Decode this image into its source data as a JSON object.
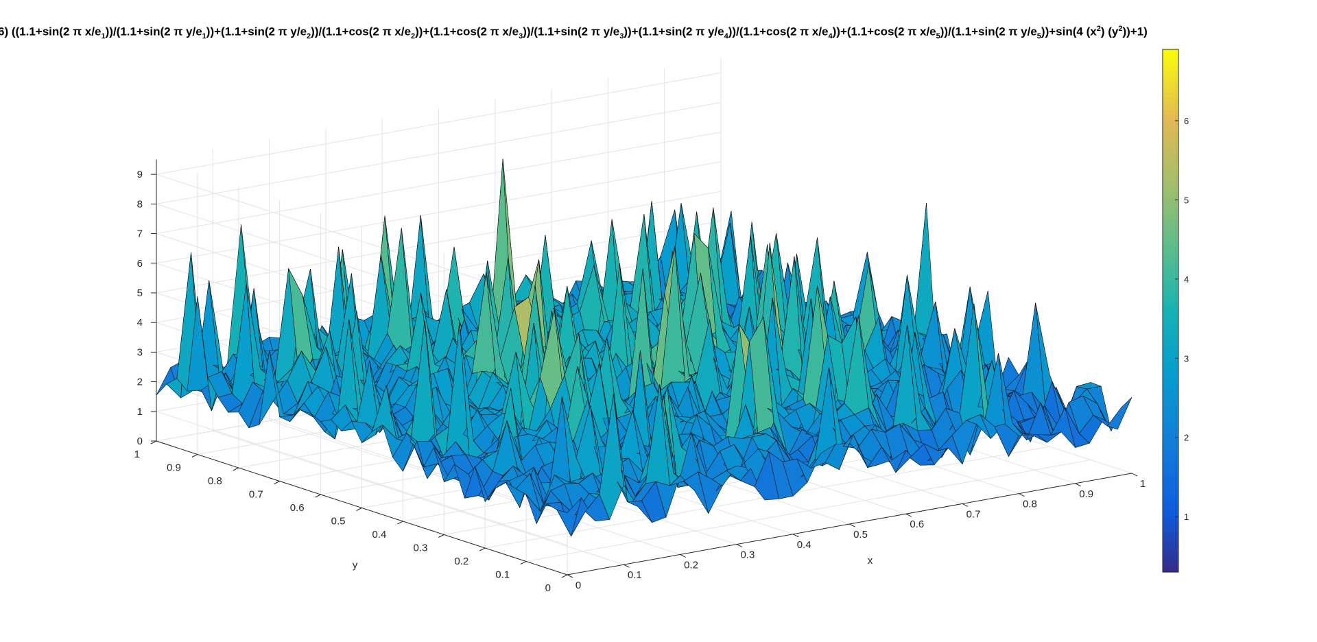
{
  "chart_data": {
    "type": "surface",
    "title_prefix": "6) ((1.1+sin(2 π x/e",
    "title_parts": [
      {
        "t": "6) ((1.1+sin(2 π x/e"
      },
      {
        "sub": "1"
      },
      {
        "t": "))/(1.1+sin(2 π y/e"
      },
      {
        "sub": "1"
      },
      {
        "t": "))+(1.1+sin(2 π y/e"
      },
      {
        "sub": "2"
      },
      {
        "t": "))/(1.1+cos(2 π x/e"
      },
      {
        "sub": "2"
      },
      {
        "t": "))+(1.1+cos(2 π x/e"
      },
      {
        "sub": "3"
      },
      {
        "t": "))/(1.1+sin(2 π y/e"
      },
      {
        "sub": "3"
      },
      {
        "t": "))+(1.1+sin(2 π y/e"
      },
      {
        "sub": "4"
      },
      {
        "t": "))/(1.1+cos(2 π x/e"
      },
      {
        "sub": "4"
      },
      {
        "t": "))+(1.1+cos(2 π x/e"
      },
      {
        "sub": "5"
      },
      {
        "t": "))/(1.1+sin(2 π y/e"
      },
      {
        "sub": "5"
      },
      {
        "t": "))+sin(4 (x"
      },
      {
        "sup": "2"
      },
      {
        "t": ") (y"
      },
      {
        "sup": "2"
      },
      {
        "t": "))+1)"
      }
    ],
    "xlabel": "x",
    "ylabel": "y",
    "zlabel": "",
    "xlim": [
      0,
      1
    ],
    "ylim": [
      0,
      1
    ],
    "zlim": [
      0,
      9.5
    ],
    "xticks": [
      "0",
      "0.1",
      "0.2",
      "0.3",
      "0.4",
      "0.5",
      "0.6",
      "0.7",
      "0.8",
      "0.9",
      "1"
    ],
    "yticks": [
      "0",
      "0.1",
      "0.2",
      "0.3",
      "0.4",
      "0.5",
      "0.6",
      "0.7",
      "0.8",
      "0.9",
      "1"
    ],
    "zticks": [
      "0",
      "1",
      "2",
      "3",
      "4",
      "5",
      "6",
      "7",
      "8",
      "9"
    ],
    "colorbar": {
      "min": 0.3,
      "max": 6.9,
      "ticks": [
        "1",
        "2",
        "3",
        "4",
        "5",
        "6"
      ],
      "colormap": "parula"
    },
    "grid": true,
    "value_range_note": "surface values mostly between 0.3 and 6.9 with peaks near 9",
    "approx_peaks": [
      {
        "x": 0.45,
        "y": 0.78,
        "z": 9.0
      },
      {
        "x": 0.62,
        "y": 0.55,
        "z": 6.9
      },
      {
        "x": 0.02,
        "y": 0.95,
        "z": 6.5
      },
      {
        "x": 0.25,
        "y": 0.7,
        "z": 5.5
      }
    ]
  }
}
